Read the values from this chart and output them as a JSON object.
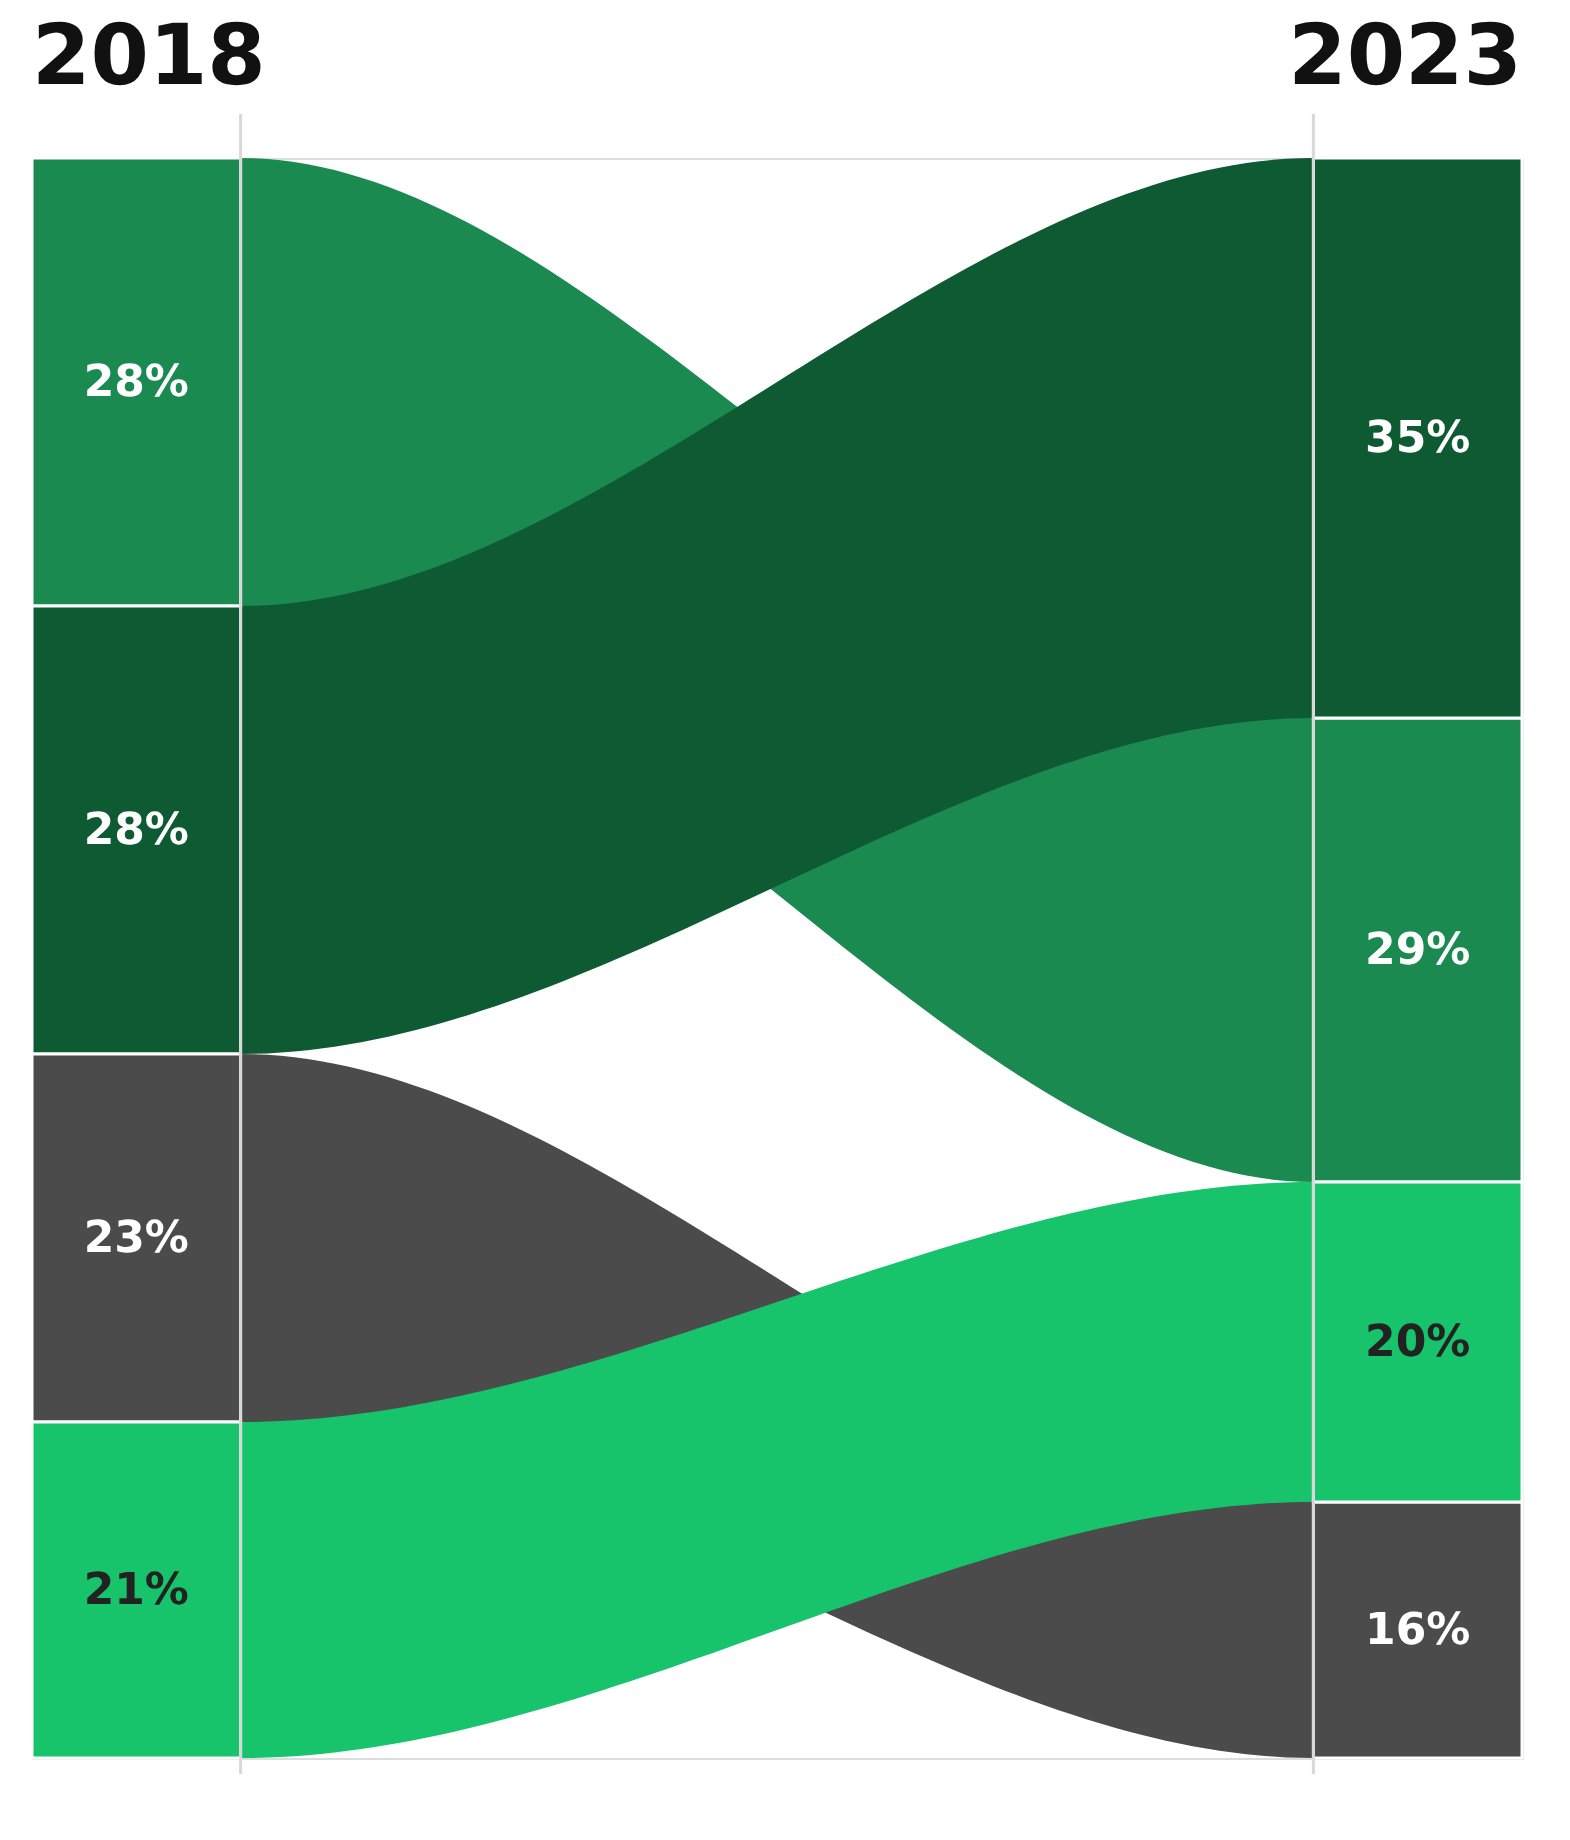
{
  "chart_data": {
    "type": "other",
    "categories": [
      "2018",
      "2023"
    ],
    "series": [
      {
        "color": "#1b8a50",
        "values": [
          28,
          29
        ],
        "value_labels": [
          "28%",
          "29%"
        ]
      },
      {
        "color": "#0e5a32",
        "values": [
          28,
          35
        ],
        "value_labels": [
          "28%",
          "35%"
        ]
      },
      {
        "color": "#4b4b4b",
        "values": [
          23,
          16
        ],
        "value_labels": [
          "23%",
          "16%"
        ]
      },
      {
        "color": "#17c46c",
        "values": [
          21,
          20
        ],
        "value_labels": [
          "21%",
          "20%"
        ]
      }
    ]
  }
}
